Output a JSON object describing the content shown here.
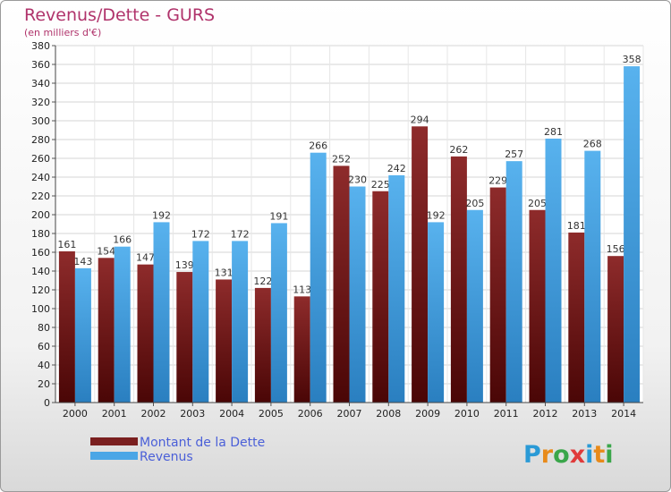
{
  "title": "Revenus/Dette - GURS",
  "subtitle": "(en milliers d'€)",
  "logo": {
    "text": "Proxiti",
    "colors": [
      "#2a9ad6",
      "#e88a1a",
      "#3aa64a",
      "#e03a3a",
      "#2a9ad6",
      "#e88a1a",
      "#3aa64a"
    ]
  },
  "colors": {
    "dette": "#7a1f1f",
    "revenus": "#4aa6e6"
  },
  "chart_data": {
    "type": "bar",
    "title": "Revenus/Dette - GURS",
    "subtitle": "(en milliers d'€)",
    "xlabel": "",
    "ylabel": "",
    "ylim": [
      0,
      380
    ],
    "yticks": [
      0,
      20,
      40,
      60,
      80,
      100,
      120,
      140,
      160,
      180,
      200,
      220,
      240,
      260,
      280,
      300,
      320,
      340,
      360,
      380
    ],
    "grid": true,
    "legend": "bottom-left",
    "categories": [
      "2000",
      "2001",
      "2002",
      "2003",
      "2004",
      "2005",
      "2006",
      "2007",
      "2008",
      "2009",
      "2010",
      "2011",
      "2012",
      "2013",
      "2014"
    ],
    "series": [
      {
        "name": "Montant de la Dette",
        "values": [
          161,
          154,
          147,
          139,
          131,
          122,
          113,
          252,
          225,
          294,
          262,
          229,
          205,
          181,
          156
        ]
      },
      {
        "name": "Revenus",
        "values": [
          143,
          166,
          192,
          172,
          172,
          191,
          266,
          230,
          242,
          192,
          205,
          257,
          281,
          268,
          358
        ]
      }
    ]
  }
}
